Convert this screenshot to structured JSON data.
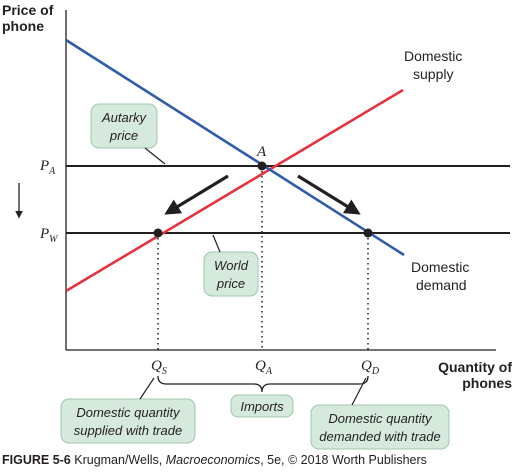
{
  "axes": {
    "y_title_line1": "Price of",
    "y_title_line2": "phone",
    "x_title_line1": "Quantity of",
    "x_title_line2": "phones"
  },
  "curves": {
    "supply_line1": "Domestic",
    "supply_line2": "supply",
    "demand_line1": "Domestic",
    "demand_line2": "demand",
    "supply_color": "#e5323e",
    "demand_color": "#2f5daa"
  },
  "price_ticks": {
    "autarky": {
      "main": "P",
      "sub": "A"
    },
    "world": {
      "main": "P",
      "sub": "W"
    }
  },
  "quantity_ticks": {
    "supplied": {
      "main": "Q",
      "sub": "S"
    },
    "autarky": {
      "main": "Q",
      "sub": "A"
    },
    "demanded": {
      "main": "Q",
      "sub": "D"
    }
  },
  "point_label": "A",
  "callouts": {
    "autarky_line1": "Autarky",
    "autarky_line2": "price",
    "world_line1": "World",
    "world_line2": "price",
    "imports": "Imports",
    "supplied_line1": "Domestic quantity",
    "supplied_line2": "supplied with trade",
    "demanded_line1": "Domestic quantity",
    "demanded_line2": "demanded with trade",
    "box_color": "#d5e9dc"
  },
  "caption": {
    "figure": "FIGURE 5-6",
    "authors": " Krugman/Wells, ",
    "book": "Macroeconomics",
    "rest": ", 5e, © 2018 Worth Publishers"
  }
}
